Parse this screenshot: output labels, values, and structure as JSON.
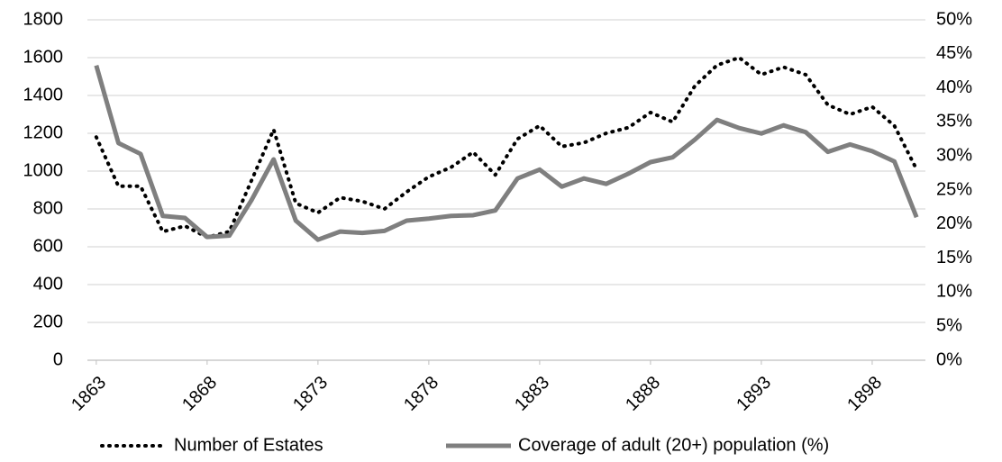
{
  "chart_data": {
    "type": "line",
    "x": [
      1863,
      1864,
      1865,
      1866,
      1867,
      1868,
      1869,
      1870,
      1871,
      1872,
      1873,
      1874,
      1875,
      1876,
      1877,
      1878,
      1879,
      1880,
      1881,
      1882,
      1883,
      1884,
      1885,
      1886,
      1887,
      1888,
      1889,
      1890,
      1891,
      1892,
      1893,
      1894,
      1895,
      1896,
      1897,
      1898,
      1899,
      1900
    ],
    "xlim": [
      1862.6,
      1900.4
    ],
    "xticks": [
      1863,
      1868,
      1873,
      1878,
      1883,
      1888,
      1893,
      1898
    ],
    "ylim": [
      0,
      1800
    ],
    "yticks": [
      0,
      200,
      400,
      600,
      800,
      1000,
      1200,
      1400,
      1600,
      1800
    ],
    "y2lim": [
      0,
      50
    ],
    "y2ticks": [
      {
        "value": 0,
        "label": "0%"
      },
      {
        "value": 5,
        "label": "5%"
      },
      {
        "value": 10,
        "label": "10%"
      },
      {
        "value": 15,
        "label": "15%"
      },
      {
        "value": 20,
        "label": "20%"
      },
      {
        "value": 25,
        "label": "25%"
      },
      {
        "value": 30,
        "label": "30%"
      },
      {
        "value": 35,
        "label": "35%"
      },
      {
        "value": 40,
        "label": "40%"
      },
      {
        "value": 45,
        "label": "45%"
      },
      {
        "value": 50,
        "label": "50%"
      }
    ],
    "grid": true,
    "legend": "bottom",
    "series": [
      {
        "name": "Number of Estates",
        "color": "#000000",
        "style": "dotted",
        "values": [
          1180,
          920,
          920,
          680,
          710,
          650,
          680,
          950,
          1220,
          830,
          780,
          860,
          840,
          800,
          890,
          970,
          1020,
          1100,
          980,
          1170,
          1240,
          1130,
          1150,
          1200,
          1230,
          1310,
          1260,
          1450,
          1560,
          1600,
          1510,
          1550,
          1510,
          1350,
          1300,
          1340,
          1240,
          1010
        ]
      },
      {
        "name": "Coverage of adult (20+) population (%)",
        "color": "#7f7f7f",
        "style": "solid",
        "axis": "y2",
        "values": [
          43.3,
          31.9,
          30.3,
          21.2,
          20.9,
          18.1,
          18.3,
          23.5,
          29.5,
          20.5,
          17.7,
          18.9,
          18.7,
          19.0,
          20.5,
          20.8,
          21.2,
          21.3,
          22.0,
          26.7,
          28.0,
          25.5,
          26.7,
          25.9,
          27.4,
          29.1,
          29.8,
          32.4,
          35.3,
          34.1,
          33.3,
          34.5,
          33.5,
          30.6,
          31.7,
          30.7,
          29.2,
          21.0
        ]
      }
    ]
  }
}
